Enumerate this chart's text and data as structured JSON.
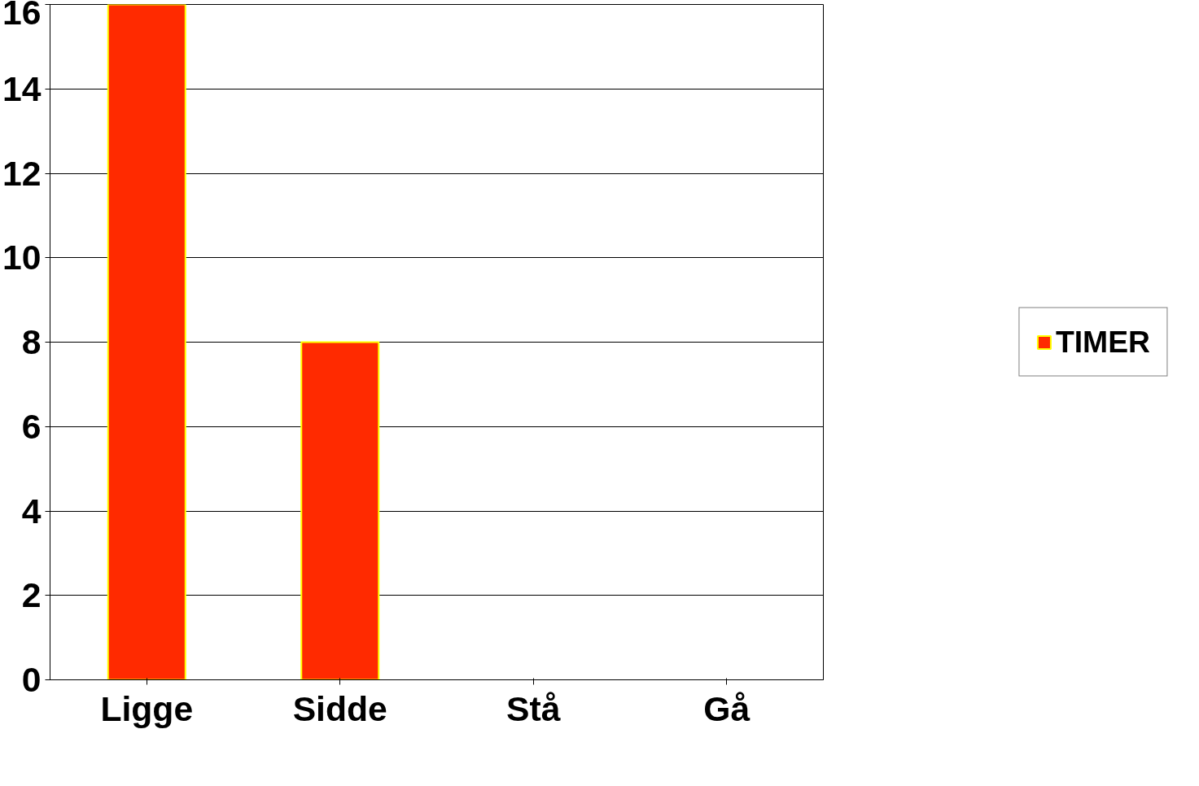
{
  "chart_data": {
    "type": "bar",
    "categories": [
      "Ligge",
      "Sidde",
      "Stå",
      "Gå"
    ],
    "series": [
      {
        "name": "TIMER",
        "color": "#ff2a00",
        "values": [
          16,
          8,
          0,
          0
        ]
      }
    ],
    "ylim": [
      0,
      16
    ],
    "yticks": [
      0,
      2,
      4,
      6,
      8,
      10,
      12,
      14,
      16
    ],
    "grid": "y",
    "legend": "right"
  }
}
